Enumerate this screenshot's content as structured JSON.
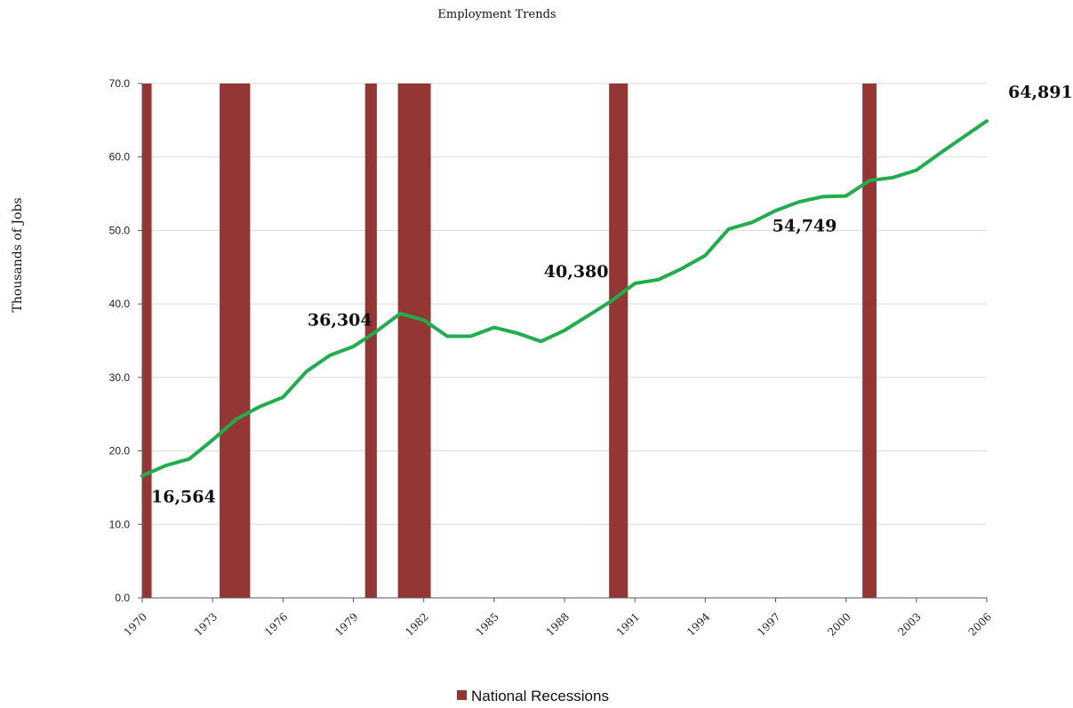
{
  "chart_data": {
    "type": "line",
    "title": "Employment Trends",
    "ylabel": "Thousands of Jobs",
    "xlabel": "",
    "ylim": [
      0,
      70
    ],
    "xlim": [
      1970,
      2006
    ],
    "yticks": [
      "0.0",
      "10.0",
      "20.0",
      "30.0",
      "40.0",
      "50.0",
      "60.0",
      "70.0"
    ],
    "xticks": [
      "1970",
      "1973",
      "1976",
      "1979",
      "1982",
      "1985",
      "1988",
      "1991",
      "1994",
      "1997",
      "2000",
      "2003",
      "2006"
    ],
    "grid": true,
    "series": [
      {
        "color": "#1fae4b",
        "x": [
          1970,
          1971,
          1972,
          1973,
          1974,
          1975,
          1976,
          1977,
          1978,
          1979,
          1980,
          1981,
          1982,
          1983,
          1984,
          1985,
          1986,
          1987,
          1988,
          1989,
          1990,
          1991,
          1992,
          1993,
          1994,
          1995,
          1996,
          1997,
          1998,
          1999,
          2000,
          2001,
          2002,
          2003,
          2004,
          2005,
          2006
        ],
        "values": [
          16.6,
          18.0,
          18.9,
          21.5,
          24.3,
          26.0,
          27.3,
          30.8,
          33.0,
          34.2,
          36.3,
          38.7,
          37.8,
          35.6,
          35.6,
          36.8,
          36.0,
          34.9,
          36.4,
          38.4,
          40.4,
          42.8,
          43.3,
          44.8,
          46.6,
          50.2,
          51.1,
          52.7,
          53.9,
          54.6,
          54.7,
          56.8,
          57.2,
          58.2,
          60.5,
          62.7,
          64.9
        ]
      }
    ],
    "recessions": {
      "name": "National Recessions",
      "color": "#943634",
      "periods": [
        [
          1970.0,
          1970.4
        ],
        [
          1973.3,
          1974.6
        ],
        [
          1979.5,
          1980.0
        ],
        [
          1980.9,
          1982.3
        ],
        [
          1989.9,
          1990.7
        ],
        [
          2000.7,
          2001.3
        ]
      ]
    },
    "annotations": [
      {
        "text": "16,564",
        "x": 1970,
        "y": 16.6
      },
      {
        "text": "36,304",
        "x": 1980,
        "y": 36.3
      },
      {
        "text": "40,380",
        "x": 1990,
        "y": 40.4
      },
      {
        "text": "54,749",
        "x": 2000,
        "y": 54.7
      },
      {
        "text": "64,891",
        "x": 2006,
        "y": 64.9
      }
    ],
    "legend": {
      "position": "bottom-center",
      "entries": [
        "National Recessions"
      ]
    }
  }
}
